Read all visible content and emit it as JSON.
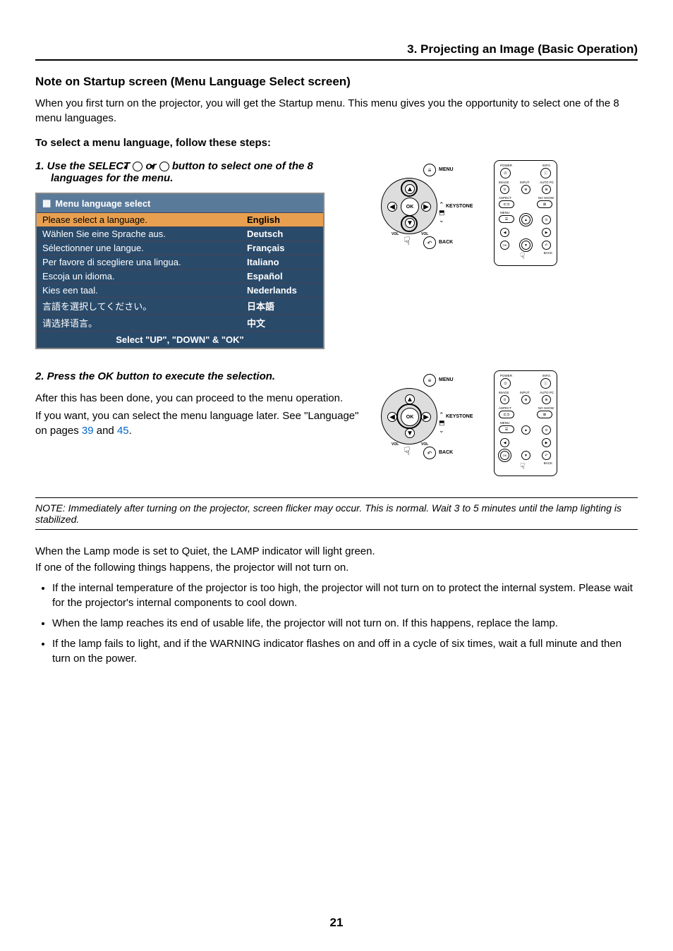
{
  "header": {
    "section": "3. Projecting an Image (Basic Operation)"
  },
  "note_title": "Note on Startup screen (Menu Language Select screen)",
  "intro": "When you first turn on the projector, you will get the Startup menu. This menu gives you the opportunity to select one of the 8 menu languages.",
  "instruct_heading": "To select a menu language, follow these steps:",
  "step1_a": "1.  Use the SELECT ",
  "step1_b": " or ",
  "step1_c": " button to select one of the 8 languages for the menu.",
  "lang_panel": {
    "title": "Menu language select",
    "rows": [
      {
        "prompt": "Please select a language.",
        "lang": "English",
        "selected": true
      },
      {
        "prompt": "Wählen Sie eine Sprache aus.",
        "lang": "Deutsch",
        "selected": false
      },
      {
        "prompt": "Sélectionner une langue.",
        "lang": "Français",
        "selected": false
      },
      {
        "prompt": "Per favore di scegliere una lingua.",
        "lang": "Italiano",
        "selected": false
      },
      {
        "prompt": "Escoja un idioma.",
        "lang": "Español",
        "selected": false
      },
      {
        "prompt": "Kies een taal.",
        "lang": "Nederlands",
        "selected": false
      },
      {
        "prompt": "言語を選択してください。",
        "lang": "日本語",
        "selected": false
      },
      {
        "prompt": "请选择语言。",
        "lang": "中文",
        "selected": false
      }
    ],
    "footer": "Select \"UP\", \"DOWN\" & \"OK\""
  },
  "controls": {
    "ok": "OK",
    "menu": "MENU",
    "back": "BACK",
    "keystone": "KEYSTONE",
    "vol": "VOL"
  },
  "remote": {
    "power": "POWER",
    "info": "INFO.",
    "image": "IMAGE",
    "input": "INPUT",
    "autopc": "AUTO PC",
    "aspect": "ASPECT",
    "noshow": "NO SHOW",
    "menu": "MENU",
    "ok": "OK",
    "back": "BACK"
  },
  "step2": "2.  Press the OK button to execute the selection.",
  "after1": "After this has been done, you can proceed to the menu operation.",
  "after2_a": "If you want, you can select the menu language later. See \"Language\" on pages ",
  "after2_link1": "39",
  "after2_b": " and ",
  "after2_link2": "45",
  "after2_c": ".",
  "note_flicker": "NOTE: Immediately after turning on the projector, screen flicker may occur. This is normal. Wait 3 to 5 minutes until the lamp lighting is stabilized.",
  "lamp1": "When the Lamp mode is set to Quiet, the LAMP indicator will light green.",
  "lamp2": "If one of the following things happens, the projector will not turn on.",
  "bullets": [
    "If the internal temperature of the projector is too high, the projector will not turn on to protect the internal system. Please wait for the projector's internal components to cool down.",
    "When the lamp reaches its end of usable life, the projector will not turn on. If this happens, replace the lamp.",
    "If the lamp fails to light, and if the WARNING indicator flashes on and off in a cycle of six times, wait a full minute and then turn on the power."
  ],
  "page_number": "21"
}
